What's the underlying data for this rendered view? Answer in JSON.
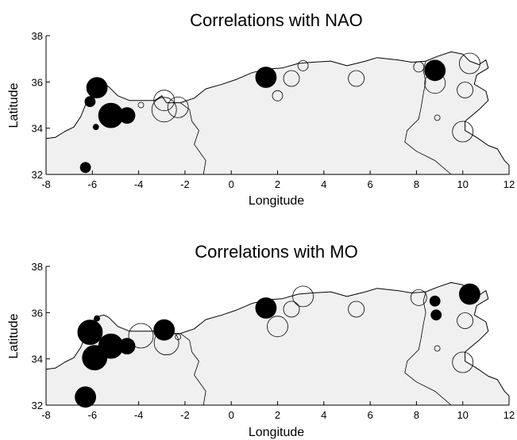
{
  "chart_data": [
    {
      "type": "scatter",
      "title": "Correlations with NAO",
      "xlabel": "Longitude",
      "ylabel": "Latitude",
      "xlim": [
        -8,
        12
      ],
      "ylim": [
        32,
        38
      ],
      "xticks": [
        -8,
        -6,
        -4,
        -2,
        0,
        2,
        4,
        6,
        8,
        10,
        12
      ],
      "yticks": [
        32,
        34,
        36,
        38
      ],
      "points": [
        {
          "lon": -5.8,
          "lat": 35.75,
          "size": 4,
          "sign": "positive"
        },
        {
          "lon": -6.1,
          "lat": 35.15,
          "size": 2,
          "sign": "positive"
        },
        {
          "lon": -5.2,
          "lat": 34.55,
          "size": 5,
          "sign": "positive"
        },
        {
          "lon": -4.5,
          "lat": 34.55,
          "size": 3,
          "sign": "positive"
        },
        {
          "lon": -5.85,
          "lat": 34.05,
          "size": 1,
          "sign": "positive"
        },
        {
          "lon": -6.3,
          "lat": 32.3,
          "size": 2,
          "sign": "positive"
        },
        {
          "lon": -3.9,
          "lat": 35.0,
          "size": 1,
          "sign": "negative"
        },
        {
          "lon": -2.9,
          "lat": 35.2,
          "size": 4,
          "sign": "negative"
        },
        {
          "lon": -2.9,
          "lat": 34.8,
          "size": 5,
          "sign": "negative"
        },
        {
          "lon": -2.3,
          "lat": 34.9,
          "size": 4,
          "sign": "negative"
        },
        {
          "lon": 1.5,
          "lat": 36.2,
          "size": 4,
          "sign": "positive"
        },
        {
          "lon": 2.6,
          "lat": 36.15,
          "size": 3,
          "sign": "negative"
        },
        {
          "lon": 2.0,
          "lat": 35.4,
          "size": 2,
          "sign": "negative"
        },
        {
          "lon": 3.1,
          "lat": 36.7,
          "size": 2,
          "sign": "negative"
        },
        {
          "lon": 5.4,
          "lat": 36.15,
          "size": 3,
          "sign": "negative"
        },
        {
          "lon": 8.1,
          "lat": 36.65,
          "size": 2,
          "sign": "negative"
        },
        {
          "lon": 8.8,
          "lat": 36.5,
          "size": 4,
          "sign": "positive"
        },
        {
          "lon": 8.8,
          "lat": 35.95,
          "size": 4,
          "sign": "negative"
        },
        {
          "lon": 10.3,
          "lat": 36.8,
          "size": 4,
          "sign": "negative"
        },
        {
          "lon": 10.1,
          "lat": 35.65,
          "size": 3,
          "sign": "negative"
        },
        {
          "lon": 8.9,
          "lat": 34.45,
          "size": 1,
          "sign": "negative"
        },
        {
          "lon": 10.0,
          "lat": 33.85,
          "size": 4,
          "sign": "negative"
        }
      ]
    },
    {
      "type": "scatter",
      "title": "Correlations with MO",
      "xlabel": "Longitude",
      "ylabel": "Latitude",
      "xlim": [
        -8,
        12
      ],
      "ylim": [
        32,
        38
      ],
      "xticks": [
        -8,
        -6,
        -4,
        -2,
        0,
        2,
        4,
        6,
        8,
        10,
        12
      ],
      "yticks": [
        32,
        34,
        36,
        38
      ],
      "points": [
        {
          "lon": -5.8,
          "lat": 35.75,
          "size": 1,
          "sign": "positive"
        },
        {
          "lon": -6.1,
          "lat": 35.15,
          "size": 5,
          "sign": "positive"
        },
        {
          "lon": -5.2,
          "lat": 34.55,
          "size": 5,
          "sign": "positive"
        },
        {
          "lon": -5.9,
          "lat": 34.05,
          "size": 5,
          "sign": "positive"
        },
        {
          "lon": -4.5,
          "lat": 34.55,
          "size": 3,
          "sign": "positive"
        },
        {
          "lon": -6.3,
          "lat": 32.35,
          "size": 4,
          "sign": "positive"
        },
        {
          "lon": -3.9,
          "lat": 35.0,
          "size": 5,
          "sign": "negative"
        },
        {
          "lon": -2.9,
          "lat": 35.25,
          "size": 4,
          "sign": "positive"
        },
        {
          "lon": -2.8,
          "lat": 34.7,
          "size": 5,
          "sign": "negative"
        },
        {
          "lon": -2.3,
          "lat": 34.95,
          "size": 1,
          "sign": "negative"
        },
        {
          "lon": 1.5,
          "lat": 36.2,
          "size": 4,
          "sign": "positive"
        },
        {
          "lon": 2.6,
          "lat": 36.15,
          "size": 3,
          "sign": "negative"
        },
        {
          "lon": 2.0,
          "lat": 35.4,
          "size": 4,
          "sign": "negative"
        },
        {
          "lon": 3.1,
          "lat": 36.7,
          "size": 4,
          "sign": "negative"
        },
        {
          "lon": 5.4,
          "lat": 36.15,
          "size": 3,
          "sign": "negative"
        },
        {
          "lon": 8.1,
          "lat": 36.65,
          "size": 3,
          "sign": "negative"
        },
        {
          "lon": 8.8,
          "lat": 36.5,
          "size": 2,
          "sign": "positive"
        },
        {
          "lon": 8.85,
          "lat": 35.9,
          "size": 2,
          "sign": "positive"
        },
        {
          "lon": 10.3,
          "lat": 36.8,
          "size": 4,
          "sign": "positive"
        },
        {
          "lon": 10.1,
          "lat": 35.65,
          "size": 3,
          "sign": "negative"
        },
        {
          "lon": 8.9,
          "lat": 34.45,
          "size": 1,
          "sign": "negative"
        },
        {
          "lon": 10.0,
          "lat": 33.85,
          "size": 4,
          "sign": "negative"
        }
      ]
    }
  ],
  "colors": {
    "land": "#f0f0f0",
    "marker_positive": "#000000",
    "marker_negative": "none",
    "background": "#ffffff"
  }
}
